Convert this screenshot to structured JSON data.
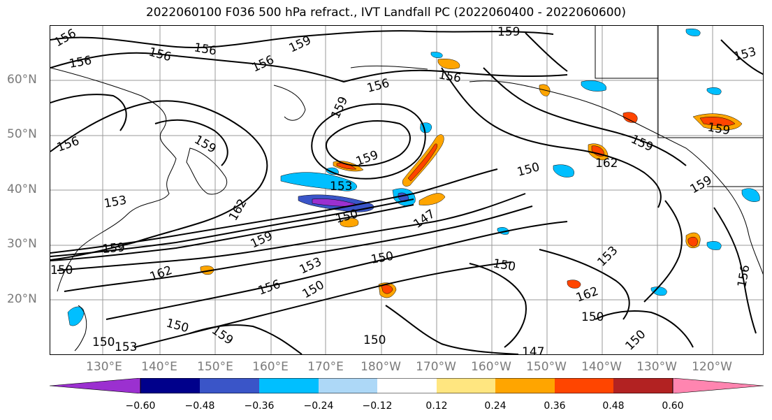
{
  "title": "2022060100 F036 500 hPa refract., IVT Landfall PC (2022060400 - 2022060600)",
  "lat_labels": [
    "60°N",
    "50°N",
    "40°N",
    "30°N",
    "20°N"
  ],
  "lon_labels": [
    "130°E",
    "140°E",
    "150°E",
    "160°E",
    "170°E",
    "180°W",
    "170°W",
    "160°W",
    "150°W",
    "140°W",
    "130°W",
    "120°W"
  ],
  "contour_labels": [
    "159",
    "156",
    "156",
    "156",
    "159",
    "156",
    "156",
    "159",
    "156",
    "156",
    "159",
    "159",
    "159",
    "159",
    "153",
    "156",
    "153",
    "153",
    "150",
    "162",
    "159",
    "150",
    "162",
    "150",
    "159",
    "147",
    "162",
    "153",
    "150",
    "150",
    "150",
    "156",
    "150",
    "150",
    "153",
    "150",
    "159",
    "162",
    "153",
    "150",
    "147",
    "159",
    "156",
    "150"
  ],
  "colorbar": {
    "ticks": [
      "−0.60",
      "−0.48",
      "−0.36",
      "−0.24",
      "−0.12",
      "0.12",
      "0.24",
      "0.36",
      "0.48",
      "0.60"
    ],
    "colors": [
      "#9b30d0",
      "#00008b",
      "#3a55c8",
      "#00bfff",
      "#add8f7",
      "#ffffff",
      "#ffe680",
      "#ffa500",
      "#ff4500",
      "#b22222",
      "#ff85b0"
    ]
  }
}
